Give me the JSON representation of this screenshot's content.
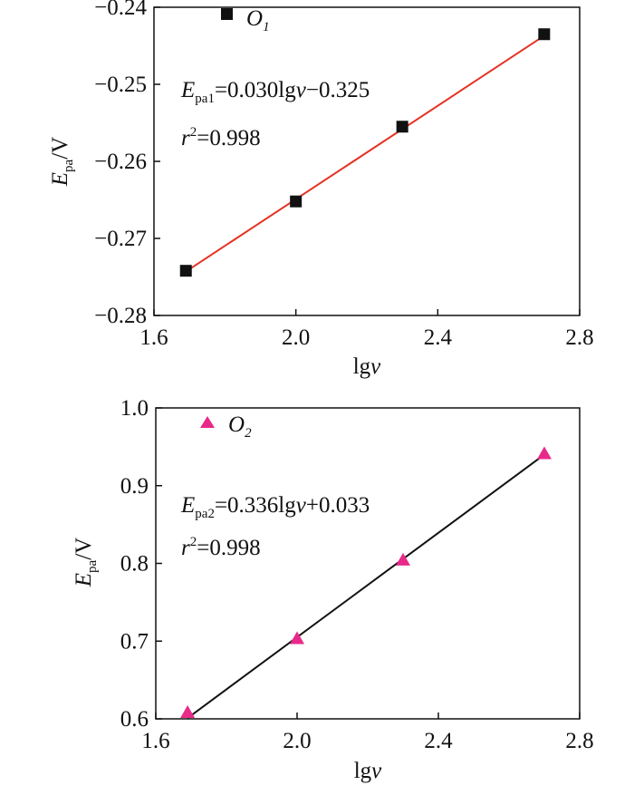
{
  "chart_data": [
    {
      "type": "scatter",
      "xlabel_base": "lg",
      "xlabel_var": "v",
      "ylabel_main": "E",
      "ylabel_sub": "pa",
      "ylabel_unit": "/V",
      "xlim": [
        1.6,
        2.8
      ],
      "ylim": [
        -0.28,
        -0.24
      ],
      "xticks": [
        "1.6",
        "2.0",
        "2.4",
        "2.8"
      ],
      "yticks": [
        "−0.28",
        "−0.27",
        "−0.26",
        "−0.25",
        "−0.24"
      ],
      "series": [
        {
          "name": "O1",
          "name_main": "O",
          "name_sub": "1",
          "marker": "square",
          "color": "#111111",
          "x": [
            1.69,
            2.0,
            2.3,
            2.7
          ],
          "y": [
            -0.2742,
            -0.2652,
            -0.2555,
            -0.2435
          ]
        }
      ],
      "fit_line": {
        "color": "#e53222",
        "x": [
          1.69,
          2.7
        ],
        "y": [
          -0.2743,
          -0.2437
        ]
      },
      "equation": {
        "main": "E",
        "sub": "pa1",
        "rest": "=0.030lg",
        "var": "v",
        "tail": "−0.325"
      },
      "r2": {
        "main": "r",
        "sup": "2",
        "rest": "=0.998"
      }
    },
    {
      "type": "scatter",
      "xlabel_base": "lg",
      "xlabel_var": "v",
      "ylabel_main": "E",
      "ylabel_sub": "pa",
      "ylabel_unit": "/V",
      "xlim": [
        1.6,
        2.8
      ],
      "ylim": [
        0.6,
        1.0
      ],
      "xticks": [
        "1.6",
        "2.0",
        "2.4",
        "2.8"
      ],
      "yticks": [
        "0.6",
        "0.7",
        "0.8",
        "0.9",
        "1.0"
      ],
      "series": [
        {
          "name": "O2",
          "name_main": "O",
          "name_sub": "2",
          "marker": "triangle",
          "color": "#e8298a",
          "x": [
            1.69,
            2.0,
            2.3,
            2.7
          ],
          "y": [
            0.607,
            0.702,
            0.803,
            0.94
          ]
        }
      ],
      "fit_line": {
        "color": "#111111",
        "x": [
          1.69,
          2.7
        ],
        "y": [
          0.601,
          0.94
        ]
      },
      "equation": {
        "main": "E",
        "sub": "pa2",
        "rest": "=0.336lg",
        "var": "v",
        "tail": "+0.033"
      },
      "r2": {
        "main": "r",
        "sup": "2",
        "rest": "=0.998"
      }
    }
  ]
}
